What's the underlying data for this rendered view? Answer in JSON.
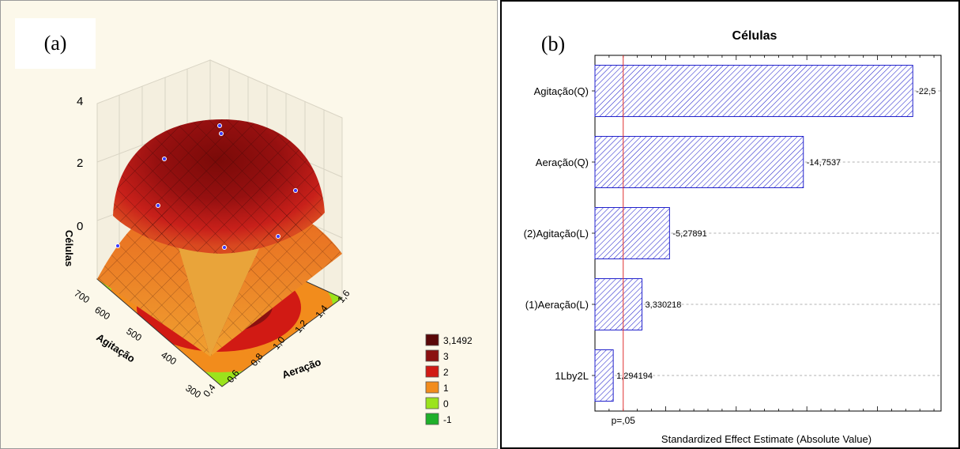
{
  "panel_a": {
    "label": "(a)",
    "chart_data": {
      "type": "surface3d",
      "zlabel": "Células",
      "xlabel": "Aeração",
      "ylabel": "Agitação",
      "x_ticks": [
        "0,4",
        "0,6",
        "0,8",
        "1,0",
        "1,2",
        "1,4",
        "1,6"
      ],
      "y_ticks": [
        "300",
        "400",
        "500",
        "600",
        "700"
      ],
      "z_ticks": [
        "0",
        "2",
        "4"
      ],
      "legend": [
        {
          "label": "3,1492",
          "color": "#5a0808"
        },
        {
          "label": "3",
          "color": "#8b1010"
        },
        {
          "label": "2",
          "color": "#d11a14"
        },
        {
          "label": "1",
          "color": "#f28c1c"
        },
        {
          "label": "0",
          "color": "#9be31c"
        },
        {
          "label": "-1",
          "color": "#1fb02a"
        }
      ]
    }
  },
  "panel_b": {
    "label": "(b)",
    "chart_data": {
      "type": "bar",
      "orientation": "horizontal",
      "title": "Células",
      "xlabel": "Standardized Effect Estimate (Absolute Value)",
      "categories": [
        "Agitação(Q)",
        "Aeração(Q)",
        "(2)Agitação(L)",
        "(1)Aeração(L)",
        "1Lby2L"
      ],
      "values": [
        22.5,
        14.7537,
        5.27891,
        3.330218,
        1.294194
      ],
      "value_labels": [
        "-22,5",
        "-14,7537",
        "-5,27891",
        "3,330218",
        "1,294194"
      ],
      "xlim": [
        0,
        24.5
      ],
      "reference_line": {
        "value": 2.0,
        "label": "p=,05"
      },
      "bar_color": "#2222cc"
    }
  }
}
